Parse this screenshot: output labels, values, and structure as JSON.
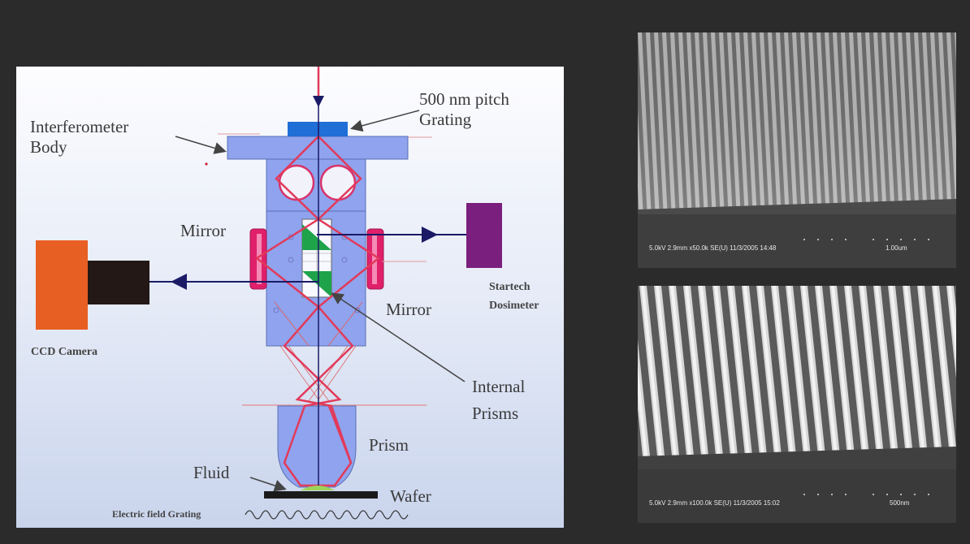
{
  "diagram": {
    "labels": {
      "grating_line1": "500 nm pitch",
      "grating_line2": "Grating",
      "body_line1": "Interferometer",
      "body_line2": "Body",
      "mirror_left": "Mirror",
      "mirror_right": "Mirror",
      "dosimeter_line1": "Startech",
      "dosimeter_line2": "Dosimeter",
      "camera": "CCD Camera",
      "prisms_line1": "Internal",
      "prisms_line2": "Prisms",
      "prism": "Prism",
      "fluid": "Fluid",
      "wafer": "Wafer",
      "efield": "Electric field Grating"
    },
    "colors": {
      "body": "#8fa3ee",
      "grating": "#1f6fd6",
      "mirror": "#e0206a",
      "dosimeter": "#7a1f7e",
      "camera_orange": "#e85f23",
      "camera_black": "#231815",
      "beam_red": "#e23a5a",
      "beam_blue": "#1a1a66",
      "prism_green": "#1fa34a"
    }
  },
  "sem_images": [
    {
      "info": "5.0kV 2.9mm x50.0k SE(U) 11/3/2005 14:48",
      "scale": "1.00um"
    },
    {
      "info": "5.0kV 2.9mm x100.0k SE(U) 11/3/2005 15:02",
      "scale": "500nm"
    }
  ]
}
